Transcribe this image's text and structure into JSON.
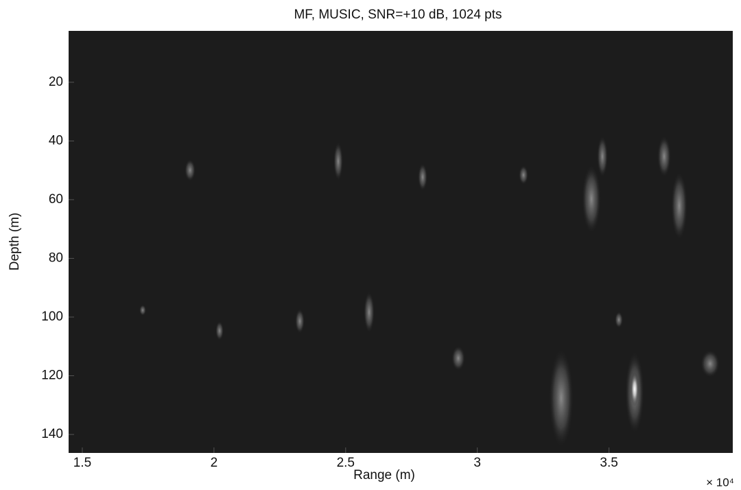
{
  "chart_data": {
    "type": "image",
    "title": "MF, MUSIC, SNR=+10 dB, 1024 pts",
    "x_label": "Range (m)",
    "y_label": "Depth (m)",
    "x_multiplier": "× 10⁴",
    "xlim": [
      1.448,
      3.97
    ],
    "xticks": [
      1.5,
      2,
      2.5,
      3,
      3.5
    ],
    "ylim": [
      146.3,
      2.5
    ],
    "yticks": [
      20,
      40,
      60,
      80,
      100,
      120,
      140
    ]
  }
}
